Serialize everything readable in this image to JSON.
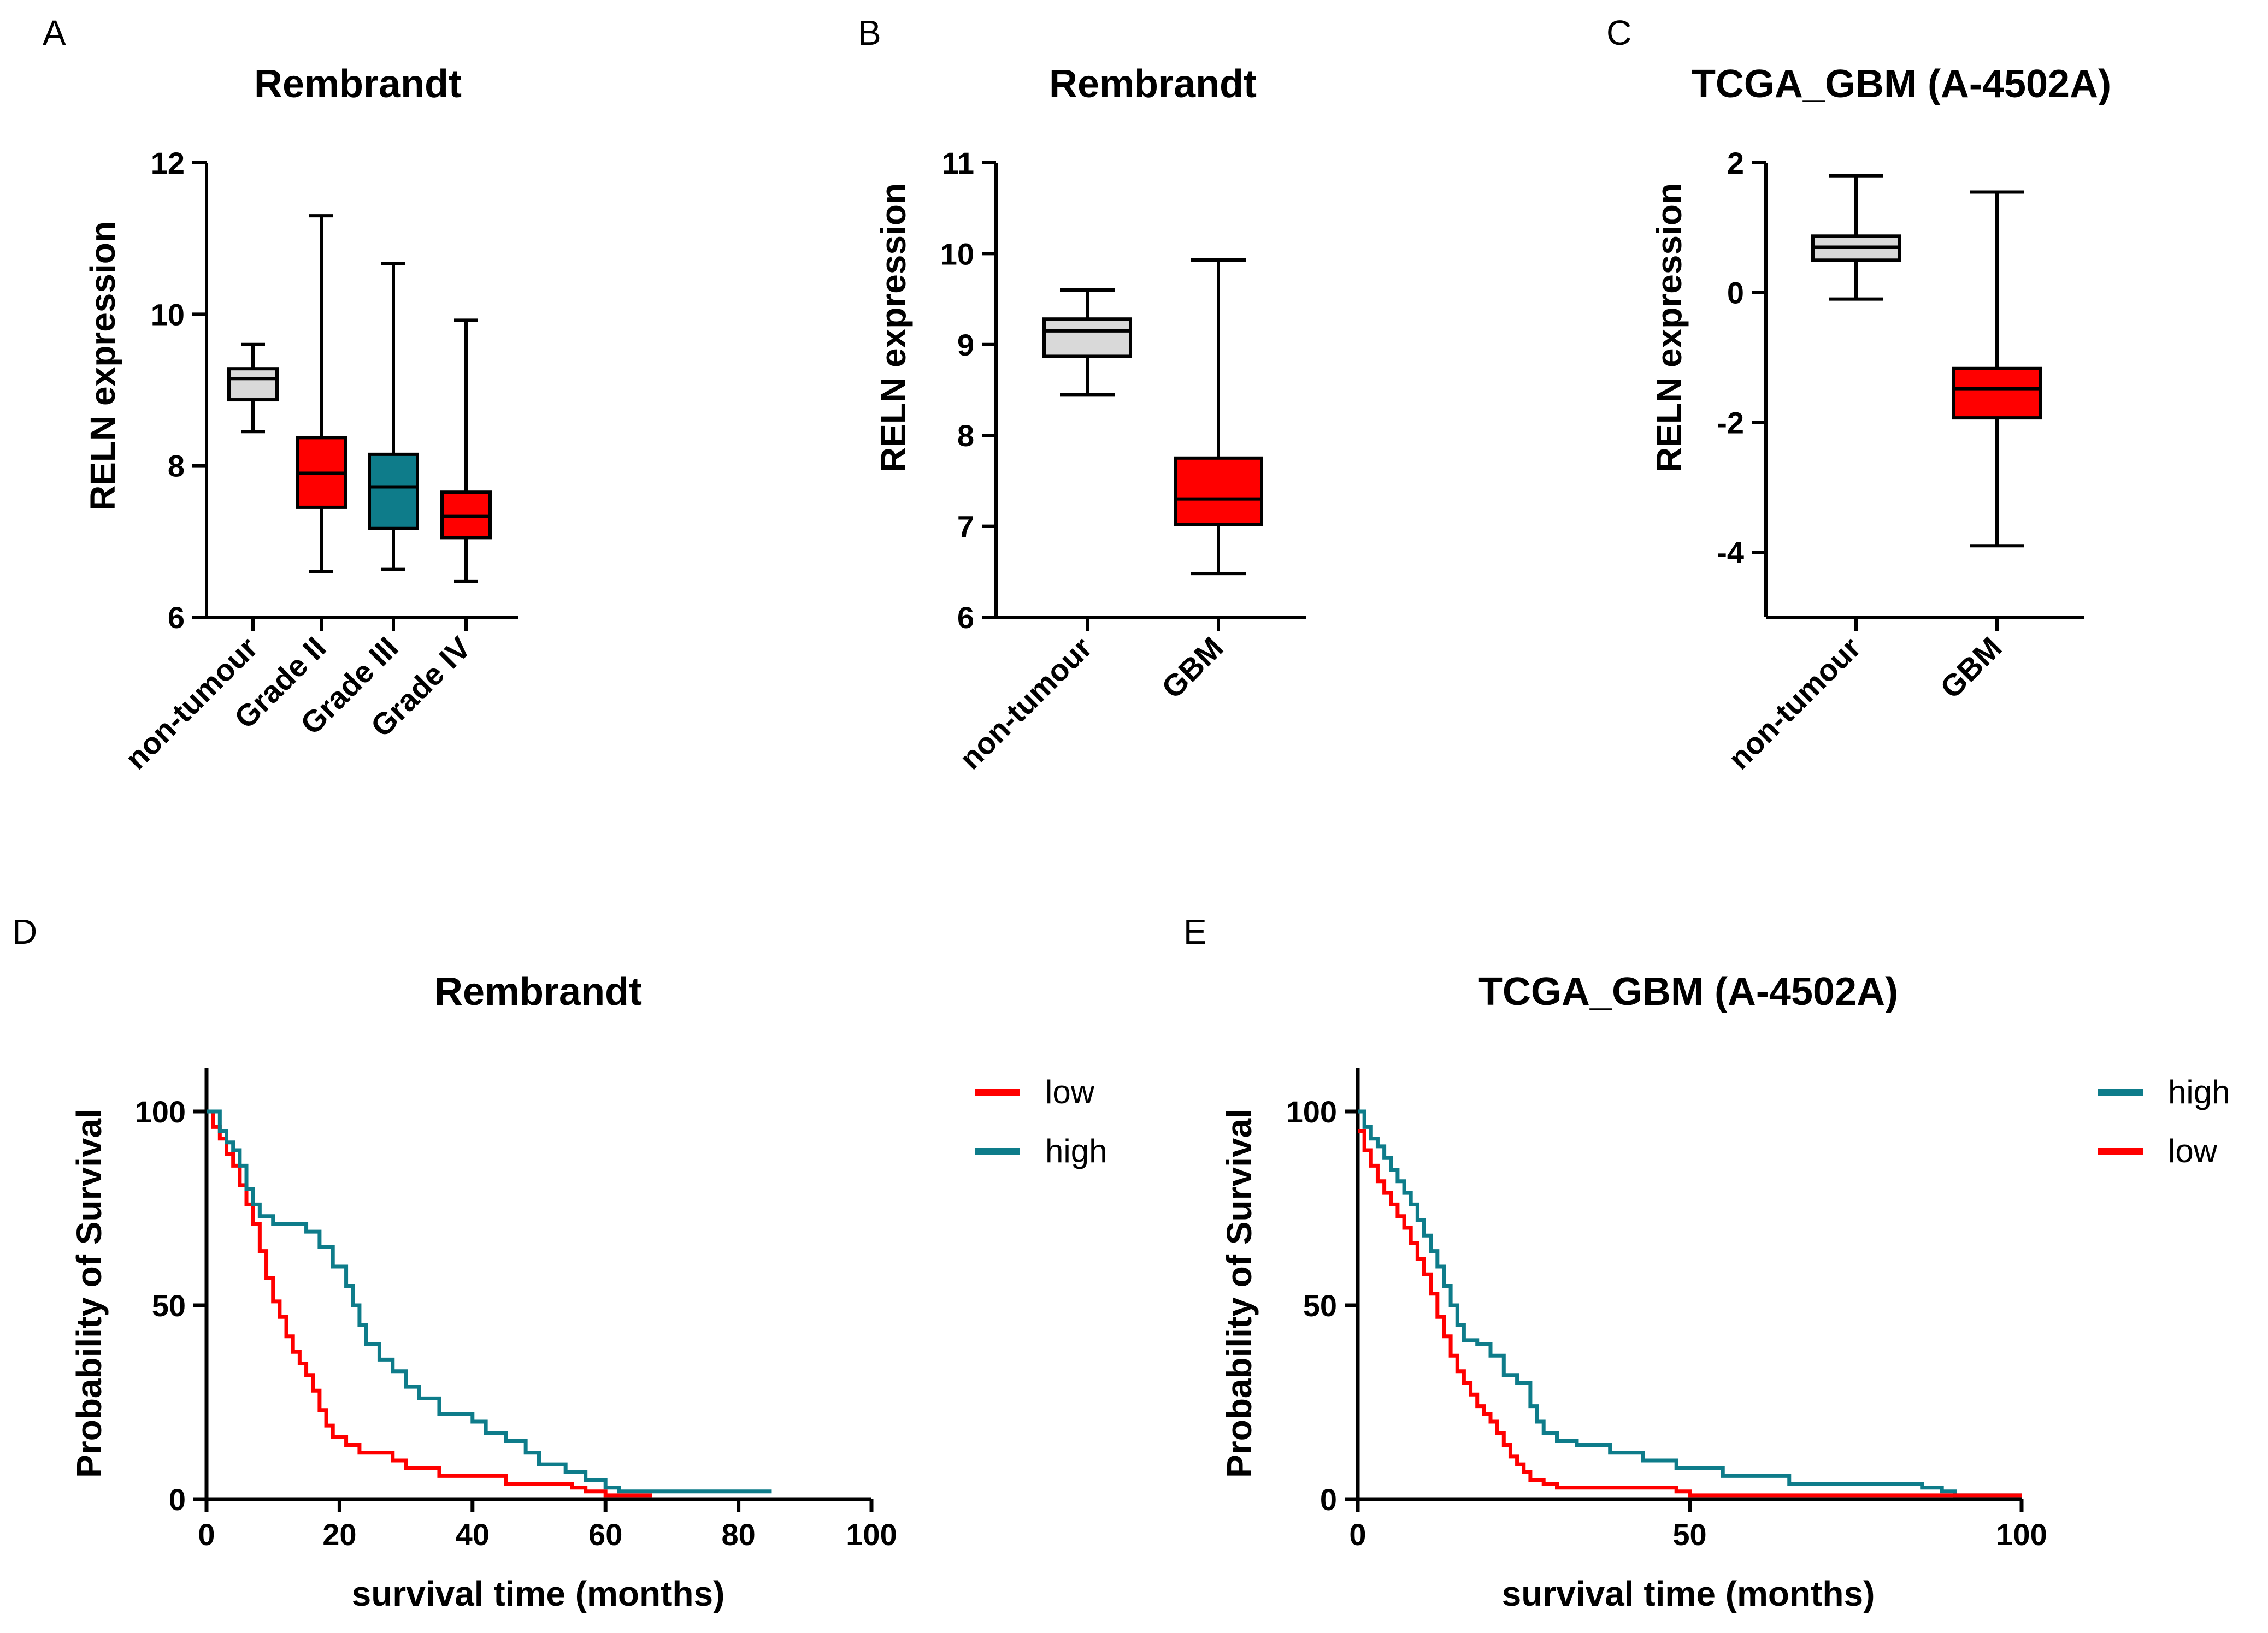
{
  "colors": {
    "red": "#ff0000",
    "teal": "#0e7c8a",
    "gray": "#d9d9d9",
    "black": "#000000"
  },
  "chart_data": [
    {
      "id": "A",
      "panel_label": "A",
      "type": "box",
      "title": "Rembrandt",
      "ylabel": "RELN expression",
      "xlabel": "",
      "ylim": [
        6,
        12
      ],
      "yticks": [
        6,
        8,
        10,
        12
      ],
      "categories": [
        "non-tumour",
        "Grade II",
        "Grade III",
        "Grade IV"
      ],
      "boxes": [
        {
          "category": "non-tumour",
          "min": 8.45,
          "q1": 8.87,
          "median": 9.15,
          "q3": 9.28,
          "max": 9.6,
          "color": "gray"
        },
        {
          "category": "Grade II",
          "min": 6.6,
          "q1": 7.45,
          "median": 7.9,
          "q3": 8.37,
          "max": 11.3,
          "color": "red"
        },
        {
          "category": "Grade III",
          "min": 6.63,
          "q1": 7.17,
          "median": 7.72,
          "q3": 8.15,
          "max": 10.67,
          "color": "teal"
        },
        {
          "category": "Grade IV",
          "min": 6.47,
          "q1": 7.05,
          "median": 7.33,
          "q3": 7.65,
          "max": 9.92,
          "color": "red"
        }
      ]
    },
    {
      "id": "B",
      "panel_label": "B",
      "type": "box",
      "title": "Rembrandt",
      "ylabel": "RELN expression",
      "xlabel": "",
      "ylim": [
        6,
        11
      ],
      "yticks": [
        6,
        7,
        8,
        9,
        10,
        11
      ],
      "categories": [
        "non-tumour",
        "GBM"
      ],
      "boxes": [
        {
          "category": "non-tumour",
          "min": 8.45,
          "q1": 8.87,
          "median": 9.15,
          "q3": 9.28,
          "max": 9.6,
          "color": "gray"
        },
        {
          "category": "GBM",
          "min": 6.48,
          "q1": 7.02,
          "median": 7.3,
          "q3": 7.75,
          "max": 9.93,
          "color": "red"
        }
      ]
    },
    {
      "id": "C",
      "panel_label": "C",
      "type": "box",
      "title": "TCGA_GBM (A-4502A)",
      "ylabel": "RELN expression",
      "xlabel": "",
      "ylim": [
        -5,
        2
      ],
      "yticks": [
        -4,
        -2,
        0,
        2
      ],
      "ytick_labels": [
        "-4",
        "-2",
        "0",
        "2"
      ],
      "categories": [
        "non-tumour",
        "GBM"
      ],
      "boxes": [
        {
          "category": "non-tumour",
          "min": -0.1,
          "q1": 0.5,
          "median": 0.7,
          "q3": 0.87,
          "max": 1.8,
          "color": "gray"
        },
        {
          "category": "GBM",
          "min": -3.9,
          "q1": -1.93,
          "median": -1.48,
          "q3": -1.17,
          "max": 1.55,
          "color": "red"
        }
      ]
    },
    {
      "id": "D",
      "panel_label": "D",
      "type": "line",
      "subtype": "kaplan-meier",
      "title": "Rembrandt",
      "ylabel": "Probability of Survival",
      "xlabel": "survival time (months)",
      "xlim": [
        0,
        100
      ],
      "ylim": [
        0,
        100
      ],
      "xticks": [
        0,
        20,
        40,
        60,
        80,
        100
      ],
      "yticks": [
        0,
        50,
        100
      ],
      "legend": [
        "low",
        "high"
      ],
      "legend_placement": "right",
      "series": [
        {
          "name": "low",
          "color": "red",
          "points": [
            [
              0,
              100
            ],
            [
              1,
              96
            ],
            [
              2,
              93
            ],
            [
              3,
              89
            ],
            [
              4,
              86
            ],
            [
              5,
              81
            ],
            [
              6,
              76
            ],
            [
              7,
              71
            ],
            [
              8,
              64
            ],
            [
              9,
              57
            ],
            [
              10,
              51
            ],
            [
              11,
              47
            ],
            [
              12,
              42
            ],
            [
              13,
              38
            ],
            [
              14,
              35
            ],
            [
              15,
              32
            ],
            [
              16,
              28
            ],
            [
              17,
              23
            ],
            [
              18,
              19
            ],
            [
              19,
              16
            ],
            [
              21,
              14
            ],
            [
              23,
              12
            ],
            [
              28,
              10
            ],
            [
              30,
              8
            ],
            [
              35,
              6
            ],
            [
              45,
              4
            ],
            [
              55,
              3
            ],
            [
              57,
              2
            ],
            [
              60,
              1
            ],
            [
              67,
              1
            ]
          ]
        },
        {
          "name": "high",
          "color": "teal",
          "points": [
            [
              0,
              100
            ],
            [
              2,
              95
            ],
            [
              3,
              92
            ],
            [
              4,
              90
            ],
            [
              5,
              86
            ],
            [
              6,
              80
            ],
            [
              7,
              76
            ],
            [
              8,
              73
            ],
            [
              10,
              71
            ],
            [
              15,
              69
            ],
            [
              17,
              65
            ],
            [
              19,
              60
            ],
            [
              21,
              55
            ],
            [
              22,
              50
            ],
            [
              23,
              45
            ],
            [
              24,
              40
            ],
            [
              26,
              36
            ],
            [
              28,
              33
            ],
            [
              30,
              29
            ],
            [
              32,
              26
            ],
            [
              35,
              22
            ],
            [
              40,
              20
            ],
            [
              42,
              17
            ],
            [
              45,
              15
            ],
            [
              48,
              12
            ],
            [
              50,
              9
            ],
            [
              54,
              7
            ],
            [
              57,
              5
            ],
            [
              60,
              3
            ],
            [
              62,
              2
            ],
            [
              85,
              2
            ]
          ]
        }
      ]
    },
    {
      "id": "E",
      "panel_label": "E",
      "type": "line",
      "subtype": "kaplan-meier",
      "title": "TCGA_GBM (A-4502A)",
      "ylabel": "Probability of Survival",
      "xlabel": "survival time (months)",
      "xlim": [
        0,
        100
      ],
      "ylim": [
        0,
        100
      ],
      "xticks": [
        0,
        50,
        100
      ],
      "yticks": [
        0,
        50,
        100
      ],
      "legend": [
        "high",
        "low"
      ],
      "legend_placement": "right",
      "series": [
        {
          "name": "high",
          "color": "teal",
          "points": [
            [
              0,
              100
            ],
            [
              1,
              96
            ],
            [
              2,
              93
            ],
            [
              3,
              91
            ],
            [
              4,
              88
            ],
            [
              5,
              85
            ],
            [
              6,
              82
            ],
            [
              7,
              79
            ],
            [
              8,
              76
            ],
            [
              9,
              72
            ],
            [
              10,
              68
            ],
            [
              11,
              64
            ],
            [
              12,
              60
            ],
            [
              13,
              55
            ],
            [
              14,
              50
            ],
            [
              15,
              45
            ],
            [
              16,
              41
            ],
            [
              18,
              40
            ],
            [
              20,
              37
            ],
            [
              22,
              32
            ],
            [
              24,
              30
            ],
            [
              26,
              24
            ],
            [
              27,
              20
            ],
            [
              28,
              17
            ],
            [
              30,
              15
            ],
            [
              33,
              14
            ],
            [
              38,
              12
            ],
            [
              43,
              10
            ],
            [
              48,
              8
            ],
            [
              55,
              6
            ],
            [
              65,
              4
            ],
            [
              75,
              4
            ],
            [
              85,
              3
            ],
            [
              88,
              2
            ],
            [
              90,
              1
            ],
            [
              100,
              1
            ]
          ]
        },
        {
          "name": "low",
          "color": "red",
          "points": [
            [
              0,
              95
            ],
            [
              1,
              90
            ],
            [
              2,
              86
            ],
            [
              3,
              82
            ],
            [
              4,
              79
            ],
            [
              5,
              76
            ],
            [
              6,
              73
            ],
            [
              7,
              70
            ],
            [
              8,
              66
            ],
            [
              9,
              62
            ],
            [
              10,
              58
            ],
            [
              11,
              53
            ],
            [
              12,
              47
            ],
            [
              13,
              42
            ],
            [
              14,
              37
            ],
            [
              15,
              33
            ],
            [
              16,
              30
            ],
            [
              17,
              27
            ],
            [
              18,
              24
            ],
            [
              19,
              22
            ],
            [
              20,
              20
            ],
            [
              21,
              17
            ],
            [
              22,
              14
            ],
            [
              23,
              11
            ],
            [
              24,
              9
            ],
            [
              25,
              7
            ],
            [
              26,
              5
            ],
            [
              28,
              4
            ],
            [
              30,
              3
            ],
            [
              48,
              2
            ],
            [
              50,
              1
            ],
            [
              100,
              1
            ]
          ]
        }
      ]
    }
  ]
}
